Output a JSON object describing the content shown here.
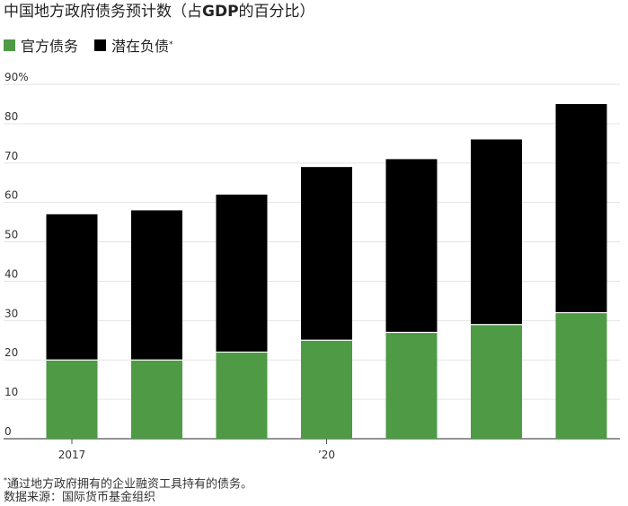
{
  "title_main": "中国地方政府债务预计数（占",
  "title_bold": "GDP",
  "title_tail": "的百分比）",
  "legend": [
    {
      "label": "官方债务",
      "mark": "",
      "color": "#4e9a45"
    },
    {
      "label": "潜在负债",
      "mark": "*",
      "color": "#000000"
    }
  ],
  "footnote": {
    "mark": "*",
    "text": "通过地方政府拥有的企业融资工具持有的债务。"
  },
  "source": "数据来源：国际货币基金组织",
  "chart_data": {
    "type": "bar",
    "stacked": true,
    "categories": [
      "2017",
      "",
      "",
      "’20",
      "",
      "",
      ""
    ],
    "series": [
      {
        "name": "官方债务",
        "color": "#4e9a45",
        "values": [
          20,
          20,
          22,
          25,
          27,
          29,
          32
        ]
      },
      {
        "name": "潜在负债",
        "color": "#000000",
        "values": [
          37,
          38,
          40,
          44,
          44,
          47,
          53
        ]
      }
    ],
    "ylim": [
      0,
      90
    ],
    "yticks": [
      0,
      10,
      20,
      30,
      40,
      50,
      60,
      70,
      80,
      90
    ],
    "ytick_labels": [
      "0",
      "10",
      "20",
      "30",
      "40",
      "50",
      "60",
      "70",
      "80",
      "90%"
    ],
    "grid": true,
    "legend_position": "top-left"
  }
}
